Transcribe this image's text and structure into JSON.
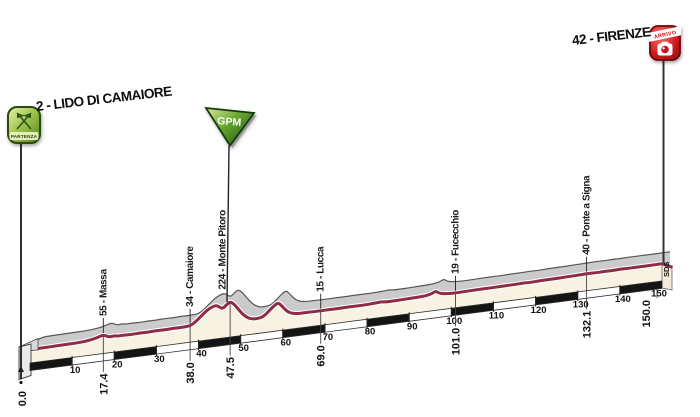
{
  "header": {
    "start_label": "2 - LIDO DI CAMAIORE",
    "finish_label": "42 - FIRENZE"
  },
  "badges": {
    "start": "PARTENZA",
    "finish": "ARRIVO",
    "gpm": "GPM",
    "credit": "SDS"
  },
  "colors": {
    "profile_line": "#8E2B47",
    "profile_fill": "#F7F2E1",
    "shadow_fill": "#CBCBCB",
    "shadow_edge": "#575757",
    "bar_black": "#141414",
    "bar_white": "#FFFFFF",
    "bar_outline": "#2B2B2B",
    "start_green": "#7FB03A",
    "finish_red": "#CF1B20",
    "gpm_green": "#2E6B1E",
    "text": "#111111"
  },
  "chart_data": {
    "type": "area",
    "x_unit": "km",
    "y_unit": "m",
    "x_range": [
      0,
      150
    ],
    "grid": false,
    "axis_ticks": [
      10,
      20,
      30,
      40,
      50,
      60,
      70,
      80,
      90,
      100,
      110,
      120,
      130,
      140,
      150
    ],
    "waypoints": [
      {
        "km": 0.0,
        "km_label": "0.0",
        "elevation_m": 2,
        "name": "Lido di Camaiore",
        "profile_label": "2 - LIDO DI CAMAIORE",
        "kind": "start"
      },
      {
        "km": 17.4,
        "km_label": "17.4",
        "elevation_m": 55,
        "name": "Massa",
        "profile_label": "55 - Massa",
        "kind": "pass"
      },
      {
        "km": 38.0,
        "km_label": "38.0",
        "elevation_m": 34,
        "name": "Camaiore",
        "profile_label": "34 - Camaiore",
        "kind": "pass"
      },
      {
        "km": 47.5,
        "km_label": "47.5",
        "elevation_m": 224,
        "name": "Monte Pitoro",
        "profile_label": "224 - Monte Pitoro",
        "kind": "gpm"
      },
      {
        "km": 69.0,
        "km_label": "69.0",
        "elevation_m": 15,
        "name": "Lucca",
        "profile_label": "15 - Lucca",
        "kind": "pass"
      },
      {
        "km": 101.0,
        "km_label": "101.0",
        "elevation_m": 19,
        "name": "Fucecchio",
        "profile_label": "19 - Fucecchio",
        "kind": "pass"
      },
      {
        "km": 132.1,
        "km_label": "132.1",
        "elevation_m": 40,
        "name": "Ponte a Signa",
        "profile_label": "40 - Ponte a Signa",
        "kind": "pass"
      },
      {
        "km": 150.0,
        "km_label": "150.0",
        "elevation_m": 42,
        "name": "Firenze",
        "profile_label": "42 - FIRENZE",
        "kind": "finish"
      }
    ],
    "profile_points": [
      [
        0,
        2
      ],
      [
        4,
        6
      ],
      [
        8,
        8
      ],
      [
        11,
        10
      ],
      [
        13,
        14
      ],
      [
        15,
        26
      ],
      [
        16.5,
        44
      ],
      [
        17.4,
        55
      ],
      [
        18.2,
        38
      ],
      [
        19,
        26
      ],
      [
        20,
        34
      ],
      [
        20.8,
        24
      ],
      [
        22,
        27
      ],
      [
        24,
        24
      ],
      [
        26,
        27
      ],
      [
        28,
        25
      ],
      [
        30,
        29
      ],
      [
        32,
        27
      ],
      [
        34,
        30
      ],
      [
        36,
        29
      ],
      [
        37,
        31
      ],
      [
        38,
        34
      ],
      [
        39,
        58
      ],
      [
        40.5,
        112
      ],
      [
        42,
        168
      ],
      [
        43.3,
        196
      ],
      [
        44.3,
        205
      ],
      [
        45.2,
        175
      ],
      [
        45.8,
        165
      ],
      [
        46.6,
        196
      ],
      [
        47.5,
        224
      ],
      [
        48.4,
        196
      ],
      [
        49.6,
        128
      ],
      [
        51,
        58
      ],
      [
        52.5,
        22
      ],
      [
        54,
        18
      ],
      [
        55.5,
        32
      ],
      [
        57,
        92
      ],
      [
        58.3,
        138
      ],
      [
        59,
        148
      ],
      [
        59.8,
        112
      ],
      [
        61,
        52
      ],
      [
        62.3,
        24
      ],
      [
        63.5,
        18
      ],
      [
        65,
        16
      ],
      [
        67,
        15
      ],
      [
        69,
        15
      ],
      [
        71,
        16
      ],
      [
        73,
        15
      ],
      [
        76,
        17
      ],
      [
        79,
        16
      ],
      [
        82,
        20
      ],
      [
        83.5,
        26
      ],
      [
        84.5,
        18
      ],
      [
        86,
        19
      ],
      [
        88,
        20
      ],
      [
        90,
        22
      ],
      [
        92,
        24
      ],
      [
        94,
        28
      ],
      [
        95.5,
        44
      ],
      [
        96.3,
        62
      ],
      [
        97,
        40
      ],
      [
        98,
        26
      ],
      [
        99.5,
        21
      ],
      [
        101,
        19
      ],
      [
        103,
        20
      ],
      [
        106,
        22
      ],
      [
        109,
        23
      ],
      [
        112,
        25
      ],
      [
        115,
        26
      ],
      [
        117,
        29
      ],
      [
        118.5,
        26
      ],
      [
        121,
        30
      ],
      [
        124,
        32
      ],
      [
        127,
        34
      ],
      [
        130,
        37
      ],
      [
        132.1,
        40
      ],
      [
        134,
        38
      ],
      [
        136,
        40
      ],
      [
        138,
        39
      ],
      [
        140,
        41
      ],
      [
        142,
        40
      ],
      [
        144,
        41
      ],
      [
        146,
        40
      ],
      [
        148,
        41
      ],
      [
        150,
        42
      ]
    ]
  }
}
